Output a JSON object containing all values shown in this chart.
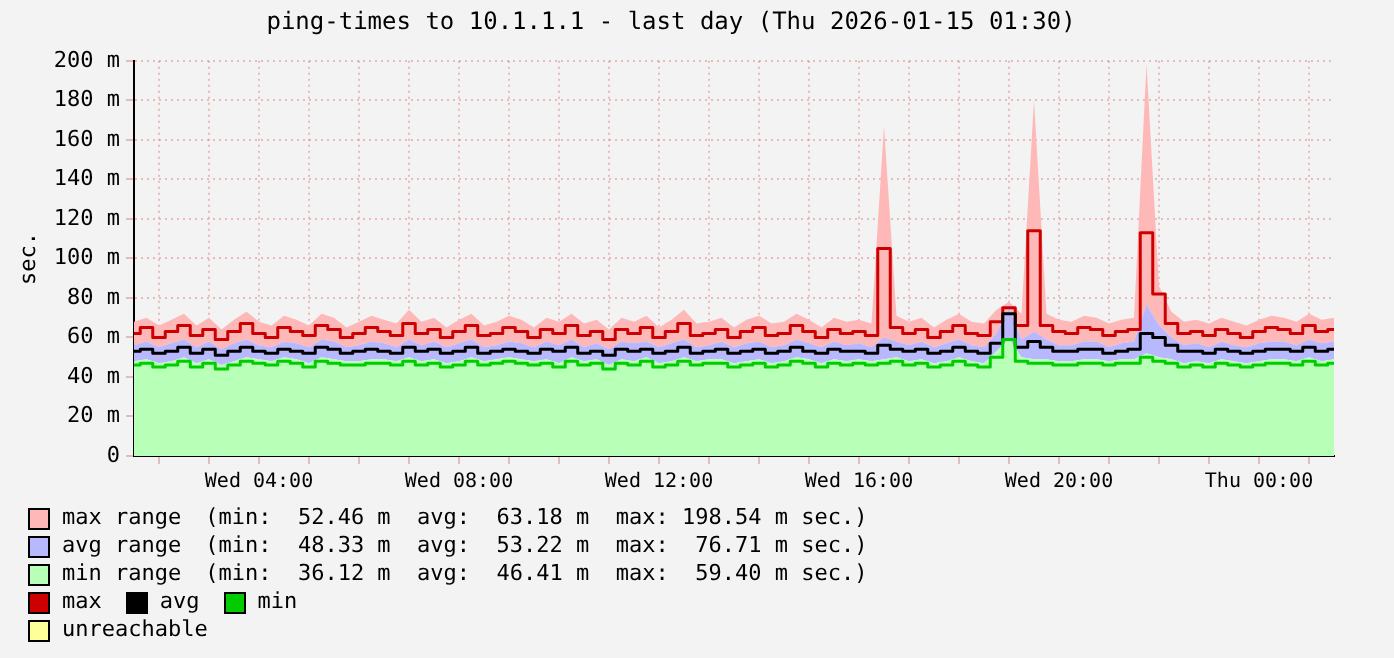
{
  "chart_data": {
    "type": "line",
    "title": "ping-times to 10.1.1.1 - last day (Thu 2026-01-15 01:30)",
    "ylabel": "sec.",
    "x": [
      "2026-01-14T01:30",
      "2026-01-14T01:45",
      "2026-01-14T02:00",
      "2026-01-14T02:15",
      "2026-01-14T02:30",
      "2026-01-14T02:45",
      "2026-01-14T03:00",
      "2026-01-14T03:15",
      "2026-01-14T03:30",
      "2026-01-14T03:45",
      "2026-01-14T04:00",
      "2026-01-14T04:15",
      "2026-01-14T04:30",
      "2026-01-14T04:45",
      "2026-01-14T05:00",
      "2026-01-14T05:15",
      "2026-01-14T05:30",
      "2026-01-14T05:45",
      "2026-01-14T06:00",
      "2026-01-14T06:15",
      "2026-01-14T06:30",
      "2026-01-14T06:45",
      "2026-01-14T07:00",
      "2026-01-14T07:15",
      "2026-01-14T07:30",
      "2026-01-14T07:45",
      "2026-01-14T08:00",
      "2026-01-14T08:15",
      "2026-01-14T08:30",
      "2026-01-14T08:45",
      "2026-01-14T09:00",
      "2026-01-14T09:15",
      "2026-01-14T09:30",
      "2026-01-14T09:45",
      "2026-01-14T10:00",
      "2026-01-14T10:15",
      "2026-01-14T10:30",
      "2026-01-14T10:45",
      "2026-01-14T11:00",
      "2026-01-14T11:15",
      "2026-01-14T11:30",
      "2026-01-14T11:45",
      "2026-01-14T12:00",
      "2026-01-14T12:15",
      "2026-01-14T12:30",
      "2026-01-14T12:45",
      "2026-01-14T13:00",
      "2026-01-14T13:15",
      "2026-01-14T13:30",
      "2026-01-14T13:45",
      "2026-01-14T14:00",
      "2026-01-14T14:15",
      "2026-01-14T14:30",
      "2026-01-14T14:45",
      "2026-01-14T15:00",
      "2026-01-14T15:15",
      "2026-01-14T15:30",
      "2026-01-14T15:45",
      "2026-01-14T16:00",
      "2026-01-14T16:15",
      "2026-01-14T16:30",
      "2026-01-14T16:45",
      "2026-01-14T17:00",
      "2026-01-14T17:15",
      "2026-01-14T17:30",
      "2026-01-14T17:45",
      "2026-01-14T18:00",
      "2026-01-14T18:15",
      "2026-01-14T18:30",
      "2026-01-14T18:45",
      "2026-01-14T19:00",
      "2026-01-14T19:15",
      "2026-01-14T19:30",
      "2026-01-14T19:45",
      "2026-01-14T20:00",
      "2026-01-14T20:15",
      "2026-01-14T20:30",
      "2026-01-14T20:45",
      "2026-01-14T21:00",
      "2026-01-14T21:15",
      "2026-01-14T21:30",
      "2026-01-14T21:45",
      "2026-01-14T22:00",
      "2026-01-14T22:15",
      "2026-01-14T22:30",
      "2026-01-14T22:45",
      "2026-01-14T23:00",
      "2026-01-14T23:15",
      "2026-01-14T23:30",
      "2026-01-14T23:45",
      "2026-01-15T00:00",
      "2026-01-15T00:15",
      "2026-01-15T00:30",
      "2026-01-15T00:45",
      "2026-01-15T01:00",
      "2026-01-15T01:15",
      "2026-01-15T01:30"
    ],
    "series": [
      {
        "name": "max range",
        "type": "area",
        "color": "#ffb8b8",
        "values": [
          68,
          70,
          66,
          69,
          72,
          66,
          70,
          64,
          69,
          73,
          68,
          66,
          71,
          69,
          66,
          72,
          70,
          65,
          68,
          71,
          69,
          67,
          74,
          68,
          70,
          65,
          69,
          72,
          66,
          68,
          71,
          69,
          65,
          70,
          68,
          72,
          67,
          69,
          64,
          70,
          68,
          71,
          65,
          69,
          74,
          67,
          68,
          70,
          65,
          69,
          71,
          67,
          68,
          72,
          69,
          65,
          70,
          68,
          69,
          67,
          167,
          71,
          68,
          70,
          65,
          69,
          72,
          68,
          67,
          74,
          78,
          72,
          180,
          72,
          69,
          68,
          71,
          70,
          67,
          69,
          70,
          198.54,
          86,
          73,
          68,
          69,
          67,
          70,
          68,
          66,
          69,
          71,
          70,
          68,
          72,
          69,
          70
        ]
      },
      {
        "name": "avg range",
        "type": "area",
        "color": "#b8b8ff",
        "values": [
          56,
          58,
          55,
          57,
          59,
          55,
          58,
          54,
          57,
          59,
          56,
          55,
          58,
          57,
          55,
          59,
          58,
          55,
          56,
          58,
          57,
          55,
          59,
          56,
          58,
          55,
          57,
          59,
          55,
          56,
          58,
          57,
          55,
          58,
          56,
          59,
          55,
          57,
          54,
          58,
          57,
          58,
          55,
          57,
          59,
          55,
          56,
          58,
          55,
          57,
          58,
          55,
          56,
          59,
          57,
          55,
          58,
          56,
          57,
          55,
          60,
          58,
          56,
          58,
          55,
          57,
          59,
          56,
          55,
          62,
          75,
          59,
          63,
          59,
          56,
          56,
          58,
          58,
          55,
          57,
          58,
          76.71,
          66,
          60,
          56,
          57,
          55,
          58,
          56,
          55,
          57,
          58,
          58,
          56,
          59,
          57,
          58
        ]
      },
      {
        "name": "min range",
        "type": "area",
        "color": "#b8ffb8",
        "values": [
          48,
          49,
          47,
          48,
          50,
          47,
          49,
          46,
          48,
          50,
          49,
          48,
          50,
          49,
          47,
          50,
          49,
          48,
          48,
          49,
          49,
          48,
          50,
          48,
          49,
          47,
          48,
          50,
          48,
          49,
          50,
          49,
          48,
          49,
          47,
          50,
          48,
          49,
          46,
          49,
          48,
          50,
          47,
          48,
          50,
          48,
          49,
          49,
          47,
          48,
          49,
          47,
          48,
          50,
          49,
          47,
          49,
          48,
          49,
          48,
          49,
          50,
          48,
          49,
          47,
          48,
          50,
          48,
          47,
          53,
          59.4,
          50,
          49,
          49,
          48,
          48,
          49,
          49,
          48,
          49,
          49,
          52,
          50,
          49,
          47,
          48,
          47,
          49,
          48,
          47,
          48,
          49,
          49,
          48,
          50,
          48,
          49
        ]
      },
      {
        "name": "max",
        "type": "step",
        "color": "#cc0000",
        "values": [
          62,
          65,
          60,
          63,
          66,
          61,
          64,
          59,
          63,
          67,
          62,
          60,
          65,
          63,
          61,
          66,
          64,
          60,
          62,
          65,
          63,
          61,
          67,
          62,
          64,
          60,
          63,
          66,
          61,
          62,
          65,
          63,
          60,
          64,
          62,
          66,
          61,
          63,
          59,
          64,
          62,
          65,
          60,
          63,
          67,
          61,
          62,
          64,
          60,
          63,
          65,
          61,
          62,
          66,
          63,
          60,
          64,
          62,
          63,
          61,
          105,
          65,
          62,
          64,
          60,
          63,
          66,
          62,
          61,
          68,
          75,
          66,
          114,
          66,
          63,
          62,
          65,
          64,
          61,
          63,
          64,
          113,
          82,
          67,
          62,
          63,
          61,
          64,
          62,
          60,
          63,
          65,
          64,
          62,
          66,
          63,
          64
        ]
      },
      {
        "name": "avg",
        "type": "step",
        "color": "#000000",
        "values": [
          53,
          54,
          52,
          53,
          55,
          52,
          54,
          51,
          53,
          55,
          53,
          52,
          54,
          53,
          52,
          55,
          54,
          52,
          53,
          54,
          53,
          52,
          55,
          53,
          54,
          52,
          53,
          55,
          52,
          53,
          54,
          53,
          52,
          54,
          53,
          55,
          52,
          53,
          51,
          54,
          53,
          54,
          52,
          53,
          55,
          52,
          53,
          54,
          52,
          53,
          54,
          52,
          53,
          55,
          53,
          52,
          54,
          53,
          53,
          52,
          56,
          54,
          53,
          54,
          52,
          53,
          55,
          53,
          52,
          57,
          72,
          55,
          58,
          55,
          53,
          53,
          54,
          54,
          52,
          53,
          54,
          62,
          60,
          56,
          53,
          53,
          52,
          54,
          53,
          52,
          53,
          54,
          54,
          53,
          55,
          53,
          54
        ]
      },
      {
        "name": "min",
        "type": "step",
        "color": "#00cc00",
        "values": [
          46,
          47,
          45,
          46,
          48,
          45,
          47,
          44,
          46,
          48,
          47,
          46,
          48,
          47,
          45,
          48,
          47,
          46,
          46,
          47,
          47,
          46,
          48,
          46,
          47,
          45,
          46,
          48,
          46,
          47,
          48,
          47,
          46,
          47,
          45,
          48,
          46,
          47,
          44,
          47,
          46,
          48,
          45,
          46,
          48,
          46,
          47,
          47,
          45,
          46,
          47,
          45,
          46,
          48,
          47,
          45,
          47,
          46,
          47,
          46,
          47,
          48,
          46,
          47,
          45,
          46,
          48,
          46,
          45,
          50,
          59,
          48,
          47,
          47,
          46,
          46,
          47,
          47,
          46,
          47,
          47,
          50,
          48,
          47,
          45,
          46,
          45,
          47,
          46,
          45,
          46,
          47,
          47,
          46,
          48,
          46,
          47
        ]
      },
      {
        "name": "unreachable",
        "type": "area",
        "color": "#ffff99",
        "values": [
          null,
          null,
          null,
          null,
          null,
          null,
          null,
          null,
          null,
          null,
          null,
          null,
          null,
          null,
          null,
          null,
          null,
          null,
          null,
          null,
          null,
          null,
          null,
          null,
          null,
          null,
          null,
          null,
          null,
          null,
          null,
          null,
          null,
          null,
          null,
          null,
          null,
          null,
          null,
          null,
          null,
          null,
          null,
          null,
          null,
          null,
          null,
          null,
          null,
          null,
          null,
          null,
          null,
          null,
          null,
          null,
          null,
          null,
          null,
          null,
          null,
          null,
          null,
          null,
          null,
          null,
          null,
          null,
          null,
          null,
          null,
          null,
          null,
          null,
          null,
          null,
          null,
          null,
          null,
          null,
          null,
          null,
          null,
          null,
          null,
          null,
          null,
          null,
          null,
          null,
          null,
          null,
          null,
          null,
          null,
          null,
          null
        ]
      }
    ],
    "annotations": [
      "(min:  52.46 m  avg:  63.18 m  max: 198.54 m sec.)",
      "(min:  48.33 m  avg:  53.22 m  max:  76.71 m sec.)",
      "(min:  36.12 m  avg:  46.41 m  max:  59.40 m sec.)"
    ],
    "xlim": [
      "2026-01-14T01:30",
      "2026-01-15T01:30"
    ],
    "xticks": [
      {
        "value": "2026-01-14T02:00",
        "label": null
      },
      {
        "value": "2026-01-14T03:00",
        "label": null
      },
      {
        "value": "2026-01-14T04:00",
        "label": "Wed 04:00"
      },
      {
        "value": "2026-01-14T05:00",
        "label": null
      },
      {
        "value": "2026-01-14T06:00",
        "label": null
      },
      {
        "value": "2026-01-14T07:00",
        "label": null
      },
      {
        "value": "2026-01-14T08:00",
        "label": "Wed 08:00"
      },
      {
        "value": "2026-01-14T09:00",
        "label": null
      },
      {
        "value": "2026-01-14T10:00",
        "label": null
      },
      {
        "value": "2026-01-14T11:00",
        "label": null
      },
      {
        "value": "2026-01-14T12:00",
        "label": "Wed 12:00"
      },
      {
        "value": "2026-01-14T13:00",
        "label": null
      },
      {
        "value": "2026-01-14T14:00",
        "label": null
      },
      {
        "value": "2026-01-14T15:00",
        "label": null
      },
      {
        "value": "2026-01-14T16:00",
        "label": "Wed 16:00"
      },
      {
        "value": "2026-01-14T17:00",
        "label": null
      },
      {
        "value": "2026-01-14T18:00",
        "label": null
      },
      {
        "value": "2026-01-14T19:00",
        "label": null
      },
      {
        "value": "2026-01-14T20:00",
        "label": "Wed 20:00"
      },
      {
        "value": "2026-01-14T21:00",
        "label": null
      },
      {
        "value": "2026-01-14T22:00",
        "label": null
      },
      {
        "value": "2026-01-14T23:00",
        "label": null
      },
      {
        "value": "2026-01-15T00:00",
        "label": "Thu 00:00"
      },
      {
        "value": "2026-01-15T01:00",
        "label": null
      }
    ],
    "ylim": [
      0,
      200
    ],
    "yticks": [
      0,
      {
        "value": 20,
        "label": "20 m"
      },
      {
        "value": 40,
        "label": "40 m"
      },
      {
        "value": 60,
        "label": "60 m"
      },
      {
        "value": 80,
        "label": "80 m"
      },
      {
        "value": 100,
        "label": "100 m"
      },
      {
        "value": 120,
        "label": "120 m"
      },
      {
        "value": 140,
        "label": "140 m"
      },
      {
        "value": 160,
        "label": "160 m"
      },
      {
        "value": 180,
        "label": "180 m"
      },
      {
        "value": 200,
        "label": "200 m"
      }
    ],
    "grid": true,
    "legend": "bottom"
  }
}
